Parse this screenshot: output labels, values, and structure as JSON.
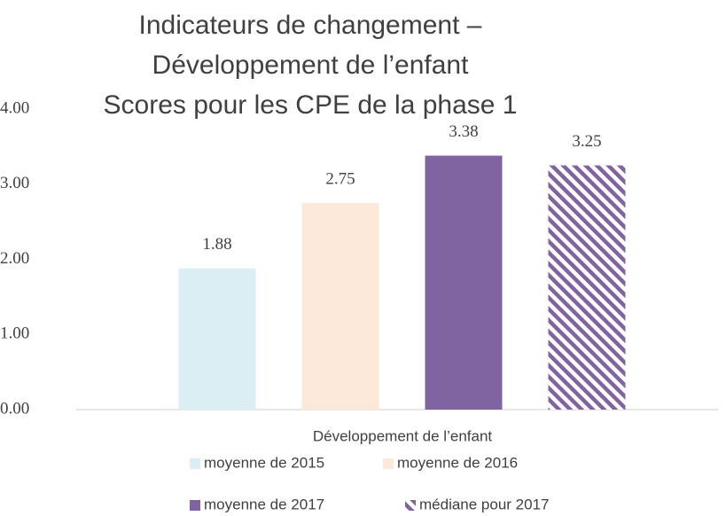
{
  "chart_data": {
    "type": "bar",
    "title": [
      "Indicateurs de changement –",
      "Développement de l’enfant",
      "Scores pour les CPE de la phase 1"
    ],
    "categories": [
      "Développement de l’enfant"
    ],
    "series": [
      {
        "name": "moyenne de 2015",
        "color": "#daeef3",
        "values": [
          1.88
        ]
      },
      {
        "name": "moyenne de 2016",
        "color": "#fde9d9",
        "values": [
          2.75
        ]
      },
      {
        "name": "moyenne de 2017",
        "color": "#8064a2",
        "values": [
          3.38
        ]
      },
      {
        "name": "médiane pour 2017",
        "color": "#8064a2",
        "pattern": "hatch",
        "values": [
          3.25
        ]
      }
    ],
    "ylim": [
      0,
      4
    ],
    "yticks": [
      {
        "value": 0,
        "label": "0.00"
      },
      {
        "value": 1,
        "label": "1.00"
      },
      {
        "value": 2,
        "label": "2.00"
      },
      {
        "value": 3,
        "label": "3.00"
      },
      {
        "value": 4,
        "label": "4.00"
      }
    ],
    "grid": false,
    "legend": "bottom"
  }
}
